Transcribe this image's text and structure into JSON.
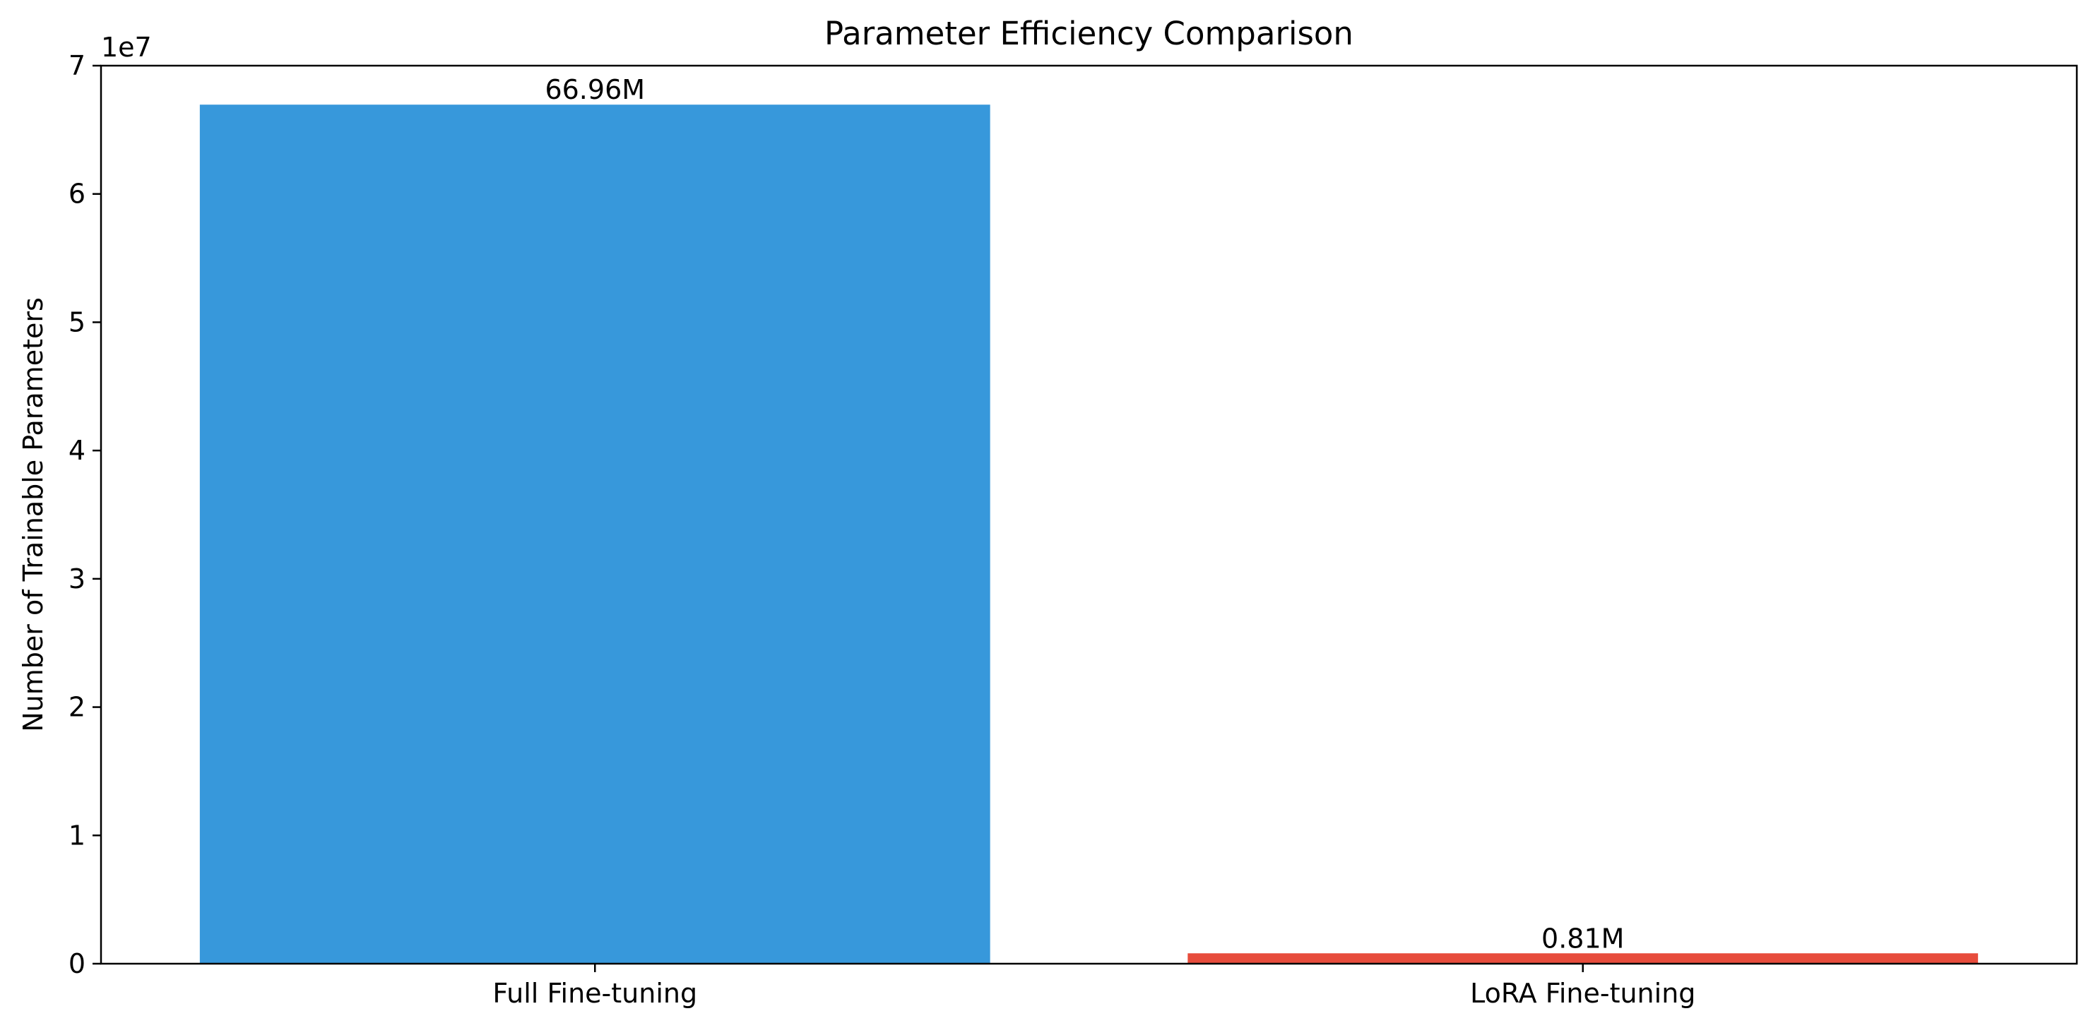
{
  "chart_data": {
    "type": "bar",
    "title": "Parameter Efficiency Comparison",
    "xlabel": "",
    "ylabel": "Number of Trainable Parameters",
    "y_offset_label": "1e7",
    "categories": [
      "Full Fine-tuning",
      "LoRA Fine-tuning"
    ],
    "values": [
      66960000,
      810000
    ],
    "data_labels": [
      "66.96M",
      "0.81M"
    ],
    "colors": [
      "#3798db",
      "#e74c3c"
    ],
    "ylim": [
      0,
      70000000
    ],
    "yticks": [
      0,
      10000000,
      20000000,
      30000000,
      40000000,
      50000000,
      60000000,
      70000000
    ],
    "ytick_labels": [
      "0",
      "1",
      "2",
      "3",
      "4",
      "5",
      "6",
      "7"
    ],
    "grid": false,
    "legend": "none"
  }
}
